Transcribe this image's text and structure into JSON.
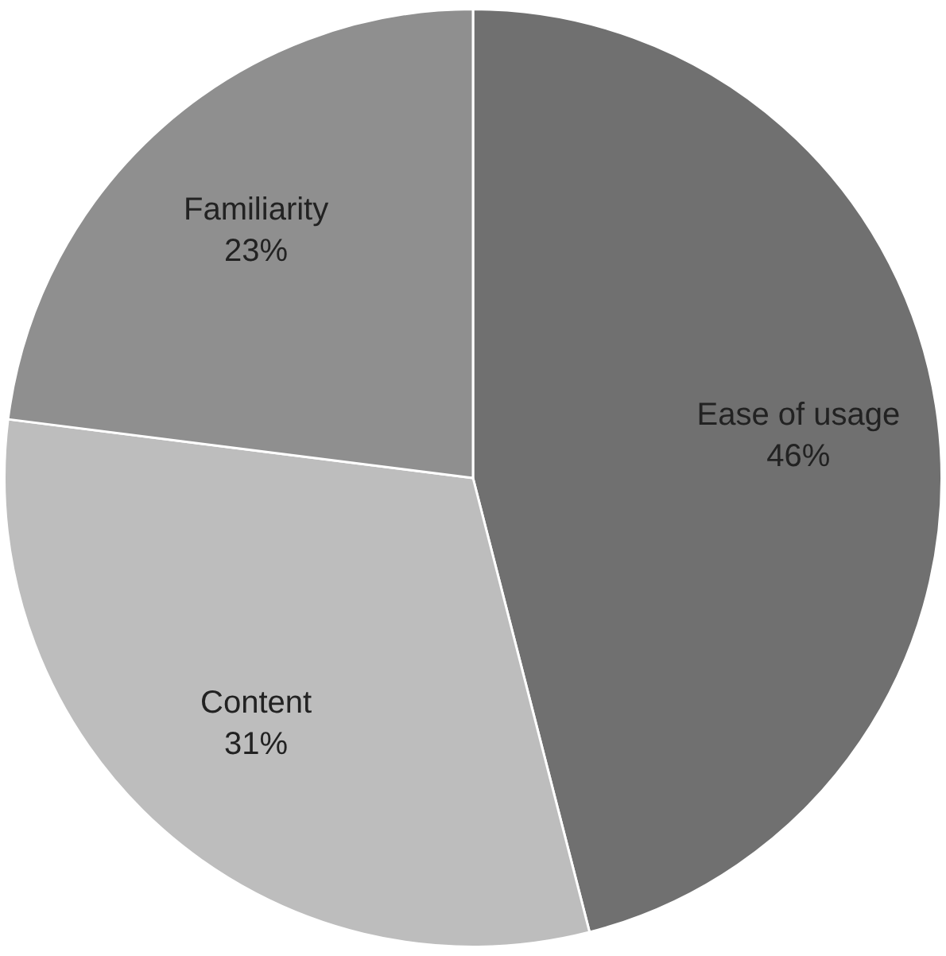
{
  "chart_data": {
    "type": "pie",
    "categories": [
      "Ease of usage",
      "Content",
      "Familiarity"
    ],
    "values": [
      46,
      31,
      23
    ],
    "colors": [
      "#707070",
      "#bdbdbd",
      "#8f8f8f"
    ],
    "value_labels": [
      "46%",
      "31%",
      "23%"
    ],
    "legend": false
  }
}
